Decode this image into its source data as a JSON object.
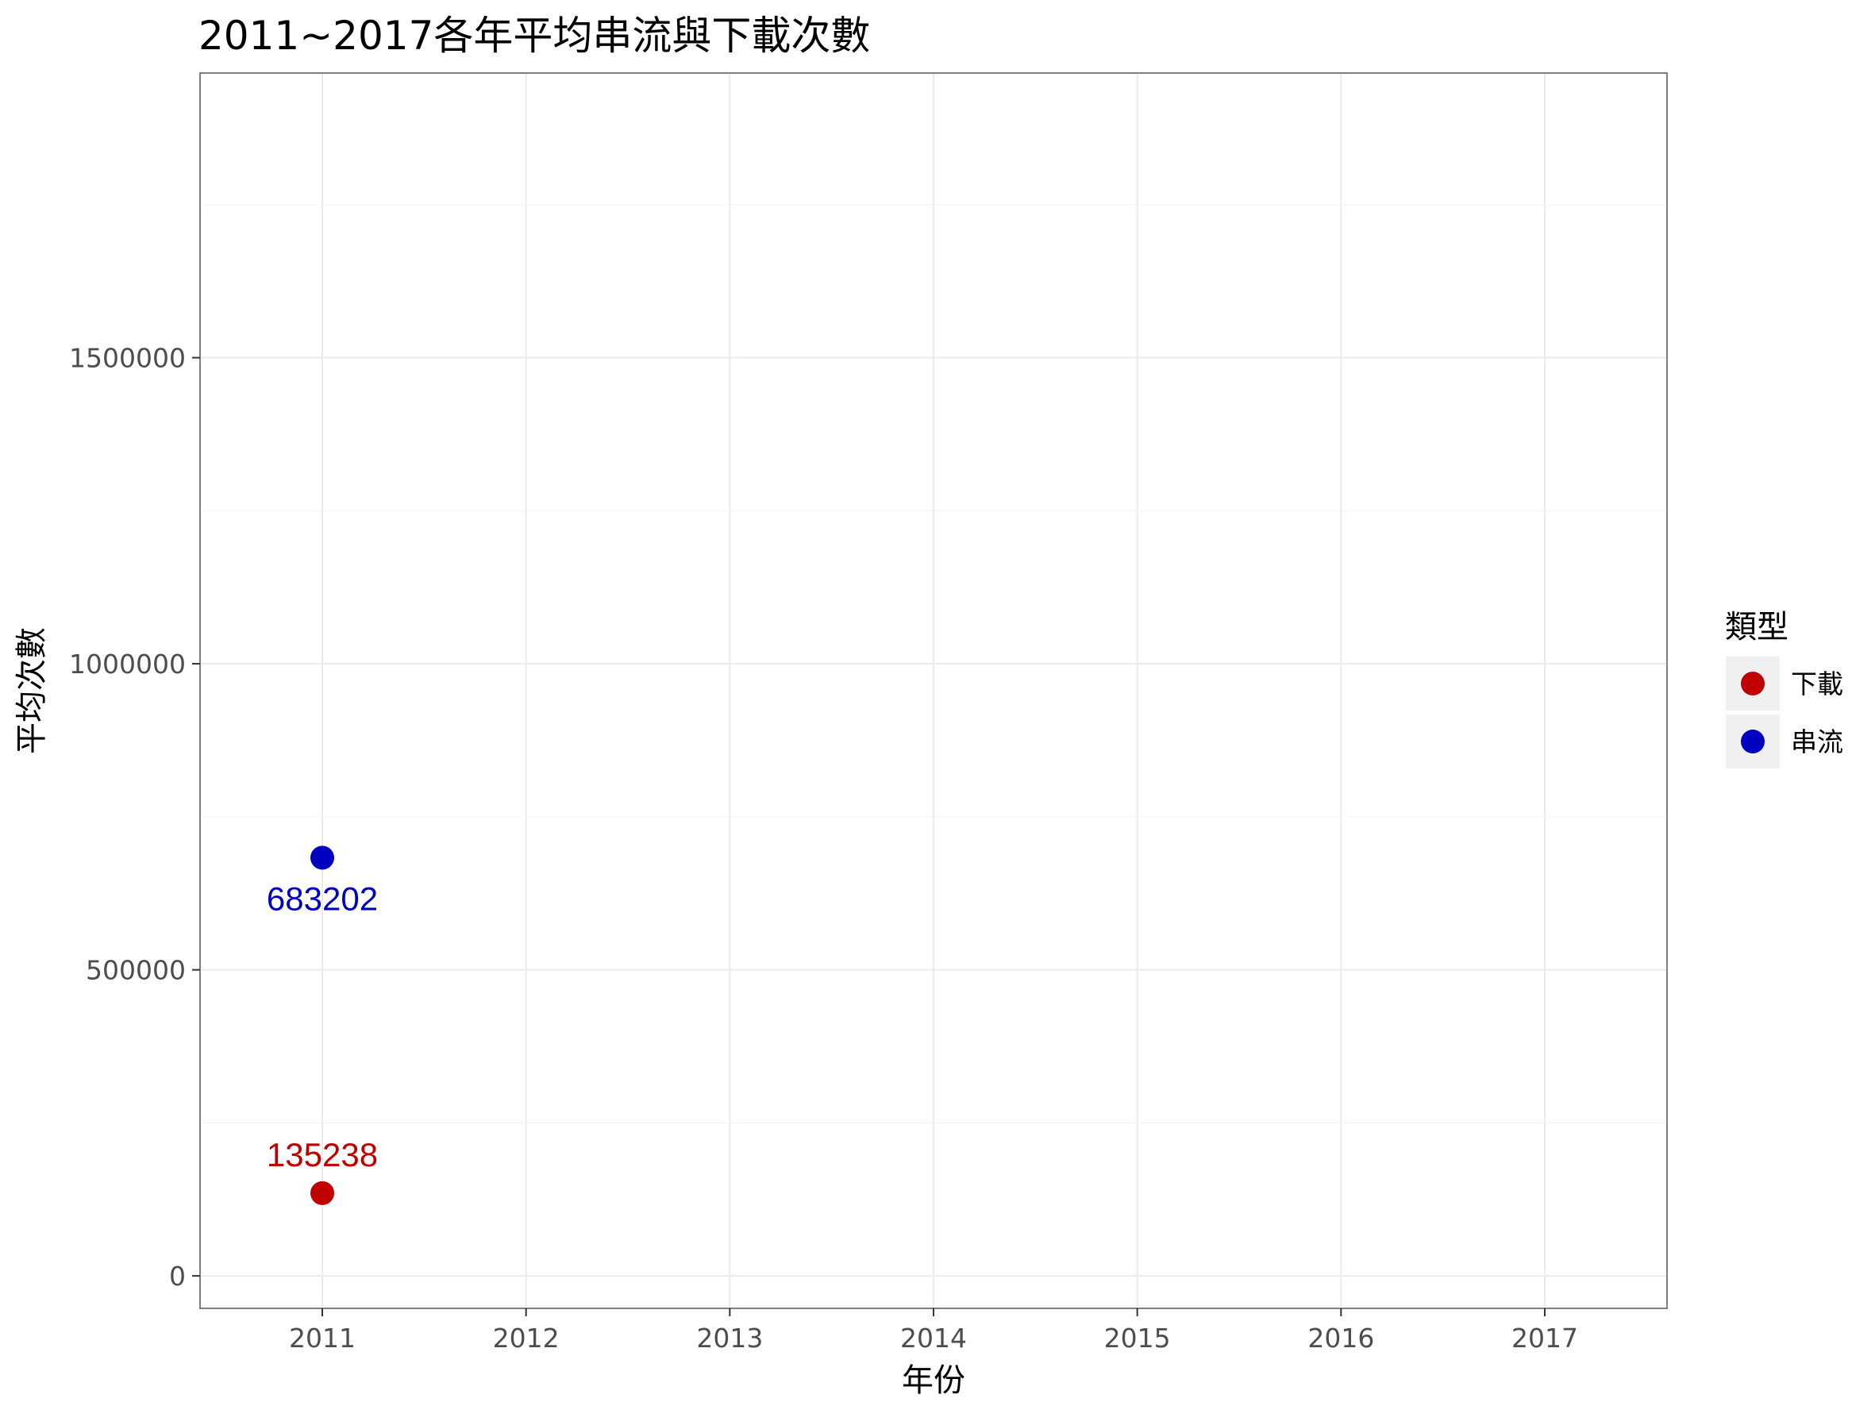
{
  "chart_data": {
    "type": "scatter",
    "title": "2011~2017各年平均串流與下載次數",
    "xlabel": "年份",
    "ylabel": "平均次數",
    "x_ticks": [
      "2011",
      "2012",
      "2013",
      "2014",
      "2015",
      "2016",
      "2017"
    ],
    "y_ticks": [
      0,
      500000,
      1000000,
      1500000
    ],
    "y_tick_labels": [
      "0",
      "500000",
      "1000000",
      "1500000"
    ],
    "xlim": [
      2010.4,
      2017.6
    ],
    "ylim": [
      -53000,
      1965000
    ],
    "grid": true,
    "legend": {
      "title": "類型",
      "position": "right"
    },
    "series": [
      {
        "name": "下載",
        "color": "#c00000",
        "label_position": "above",
        "points": [
          {
            "x": 2011,
            "y": 135238,
            "label": "135238"
          }
        ]
      },
      {
        "name": "串流",
        "color": "#0000c0",
        "label_position": "below",
        "points": [
          {
            "x": 2011,
            "y": 683202,
            "label": "683202"
          }
        ]
      }
    ]
  }
}
